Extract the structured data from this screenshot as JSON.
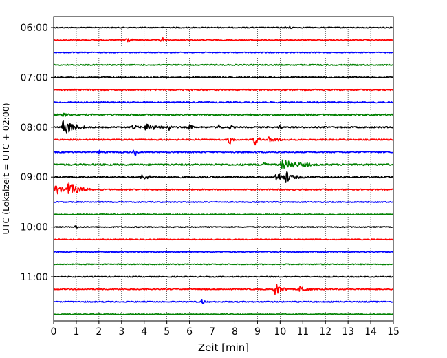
{
  "chart_data": {
    "type": "line",
    "title": "",
    "xlabel": "Zeit  [min]",
    "ylabel": "UTC (Lokalzeit = UTC + 02:00)",
    "xlim": [
      0,
      15
    ],
    "x_ticks": [
      "0",
      "1",
      "2",
      "3",
      "4",
      "5",
      "6",
      "7",
      "8",
      "9",
      "10",
      "11",
      "12",
      "13",
      "14",
      "15"
    ],
    "y_ticks": [
      "06:00",
      "07:00",
      "08:00",
      "09:00",
      "10:00",
      "11:00"
    ],
    "grid": "vertical dotted at each minute",
    "trace_interval_min": 15,
    "colors": [
      "#000000",
      "#ff0000",
      "#0000ff",
      "#008000"
    ],
    "traces": [
      {
        "start": "06:00",
        "color": "#000000",
        "noise": 0.7,
        "events": [
          {
            "t": 10.3,
            "amp": 3,
            "dur": 0.3
          }
        ]
      },
      {
        "start": "06:15",
        "color": "#ff0000",
        "noise": 0.7,
        "events": [
          {
            "t": 3.2,
            "amp": 4,
            "dur": 0.3
          },
          {
            "t": 4.8,
            "amp": 5,
            "dur": 0.1
          }
        ]
      },
      {
        "start": "06:30",
        "color": "#0000ff",
        "noise": 0.7,
        "events": []
      },
      {
        "start": "06:45",
        "color": "#008000",
        "noise": 0.8,
        "events": []
      },
      {
        "start": "07:00",
        "color": "#000000",
        "noise": 0.9,
        "events": []
      },
      {
        "start": "07:15",
        "color": "#ff0000",
        "noise": 0.9,
        "events": []
      },
      {
        "start": "07:30",
        "color": "#0000ff",
        "noise": 0.9,
        "events": []
      },
      {
        "start": "07:45",
        "color": "#008000",
        "noise": 1.2,
        "events": [
          {
            "t": 0.4,
            "amp": 3,
            "dur": 0.4
          },
          {
            "t": 14.9,
            "amp": 3,
            "dur": 0.2
          }
        ]
      },
      {
        "start": "08:00",
        "color": "#000000",
        "noise": 1.0,
        "events": [
          {
            "t": 0.45,
            "amp": 12,
            "dur": 0.5
          },
          {
            "t": 3.5,
            "amp": 4,
            "dur": 0.3
          },
          {
            "t": 4.1,
            "amp": 6,
            "dur": 0.5
          },
          {
            "t": 5.1,
            "amp": 6,
            "dur": 0.1
          },
          {
            "t": 6.0,
            "amp": 4,
            "dur": 0.2
          },
          {
            "t": 7.3,
            "amp": 4,
            "dur": 0.2
          },
          {
            "t": 7.8,
            "amp": 4,
            "dur": 0.1
          },
          {
            "t": 10.0,
            "amp": 4,
            "dur": 0.1
          }
        ]
      },
      {
        "start": "08:15",
        "color": "#ff0000",
        "noise": 0.9,
        "events": [
          {
            "t": 7.8,
            "amp": 8,
            "dur": 0.1
          },
          {
            "t": 8.9,
            "amp": 8,
            "dur": 0.2
          },
          {
            "t": 9.5,
            "amp": 4,
            "dur": 0.6
          }
        ]
      },
      {
        "start": "08:30",
        "color": "#0000ff",
        "noise": 0.9,
        "events": [
          {
            "t": 2.0,
            "amp": 3,
            "dur": 0.3
          },
          {
            "t": 3.6,
            "amp": 6,
            "dur": 0.1
          }
        ]
      },
      {
        "start": "08:45",
        "color": "#008000",
        "noise": 1.2,
        "events": [
          {
            "t": 9.3,
            "amp": 8,
            "dur": 0.1
          },
          {
            "t": 10.1,
            "amp": 7,
            "dur": 0.9
          },
          {
            "t": 11.2,
            "amp": 4,
            "dur": 0.2
          }
        ]
      },
      {
        "start": "09:00",
        "color": "#000000",
        "noise": 1.2,
        "events": [
          {
            "t": 3.9,
            "amp": 4,
            "dur": 0.5
          },
          {
            "t": 9.8,
            "amp": 6,
            "dur": 0.9
          },
          {
            "t": 10.3,
            "amp": 12,
            "dur": 0.1
          }
        ]
      },
      {
        "start": "09:15",
        "color": "#ff0000",
        "noise": 0.9,
        "events": [
          {
            "t": 0.1,
            "amp": 9,
            "dur": 0.25
          },
          {
            "t": 0.65,
            "amp": 11,
            "dur": 0.5
          }
        ]
      },
      {
        "start": "09:30",
        "color": "#0000ff",
        "noise": 0.7,
        "events": []
      },
      {
        "start": "09:45",
        "color": "#008000",
        "noise": 0.7,
        "events": []
      },
      {
        "start": "10:00",
        "color": "#000000",
        "noise": 0.7,
        "events": [
          {
            "t": 1.0,
            "amp": 3,
            "dur": 0.1
          }
        ]
      },
      {
        "start": "10:15",
        "color": "#ff0000",
        "noise": 0.7,
        "events": []
      },
      {
        "start": "10:30",
        "color": "#0000ff",
        "noise": 0.7,
        "events": []
      },
      {
        "start": "10:45",
        "color": "#008000",
        "noise": 0.7,
        "events": []
      },
      {
        "start": "11:00",
        "color": "#000000",
        "noise": 0.7,
        "events": []
      },
      {
        "start": "11:15",
        "color": "#ff0000",
        "noise": 0.8,
        "events": [
          {
            "t": 9.8,
            "amp": 9,
            "dur": 0.3
          },
          {
            "t": 10.9,
            "amp": 6,
            "dur": 0.3
          }
        ]
      },
      {
        "start": "11:30",
        "color": "#0000ff",
        "noise": 0.8,
        "events": [
          {
            "t": 6.6,
            "amp": 4,
            "dur": 0.1
          }
        ]
      },
      {
        "start": "11:45",
        "color": "#008000",
        "noise": 0.6,
        "events": []
      }
    ]
  }
}
